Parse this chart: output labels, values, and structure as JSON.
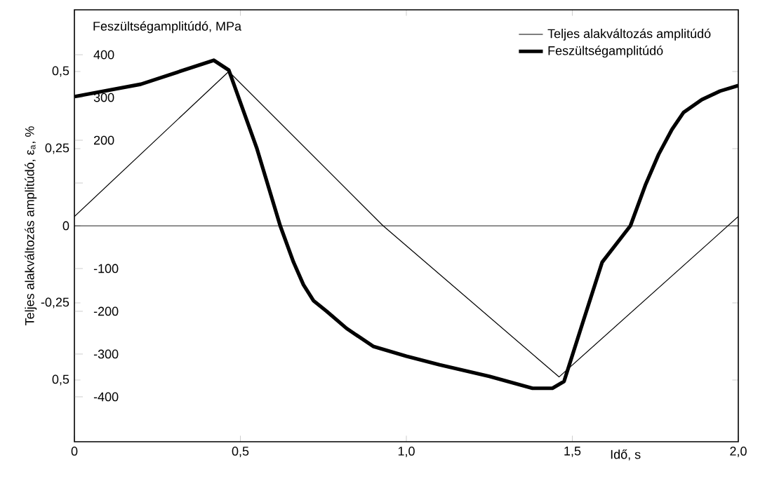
{
  "chart_data": {
    "type": "line",
    "xlabel": "Idő, s",
    "ylabel": "Teljes alakváltozás amplitúdó, ε$_{a}$, %",
    "y2label": "Feszültségamplitúdó, MPa",
    "xlim": [
      0,
      2.0
    ],
    "xticks": [
      0,
      {
        "value": 0.5,
        "label": "0,5"
      },
      {
        "value": 1.0,
        "label": "1,0"
      },
      {
        "value": 1.5,
        "label": "1,5"
      },
      {
        "value": 2.0,
        "label": "2,0"
      }
    ],
    "ylim": [
      -0.7,
      0.7
    ],
    "yticks": [
      {
        "value": 0.5,
        "label": "0,5"
      },
      {
        "value": 0.25,
        "label": "0,25"
      },
      0,
      {
        "value": -0.25,
        "label": "-0,25"
      },
      {
        "value": -0.5,
        "label": "0,5"
      }
    ],
    "y2lim": [
      -505,
      505
    ],
    "y2ticks": [
      400,
      300,
      200,
      {
        "value": 100,
        "label": null
      },
      -100,
      -200,
      -300,
      -400
    ],
    "series": [
      {
        "name": "Teljes alakváltozás amplitúdó",
        "color": "#000000",
        "x": [
          0,
          0.465,
          0.93,
          1.46,
          2.0
        ],
        "values": [
          0.03,
          0.5,
          0,
          -0.49,
          0.03
        ]
      },
      {
        "name": "Feszültségamplitúdó",
        "color": "#000000",
        "axis": "y2",
        "x": [
          0,
          0.2,
          0.42,
          0.465,
          0.55,
          0.62,
          0.66,
          0.69,
          0.72,
          0.76,
          0.82,
          0.9,
          1.0,
          1.1,
          1.25,
          1.38,
          1.44,
          1.475,
          1.53,
          1.59,
          1.675,
          1.72,
          1.76,
          1.8,
          1.835,
          1.89,
          1.945,
          2.0
        ],
        "values": [
          302,
          331,
          387,
          364,
          180,
          0,
          -85,
          -138,
          -175,
          -200,
          -240,
          -282,
          -305,
          -325,
          -352,
          -380,
          -380,
          -364,
          -230,
          -85,
          0,
          95,
          167,
          225,
          265,
          295,
          315,
          328
        ]
      }
    ],
    "ref_lines": [
      {
        "axis": "y",
        "value": 0
      }
    ],
    "legend": "top right",
    "grid": false,
    "marker": "none",
    "line_style": "solid"
  }
}
